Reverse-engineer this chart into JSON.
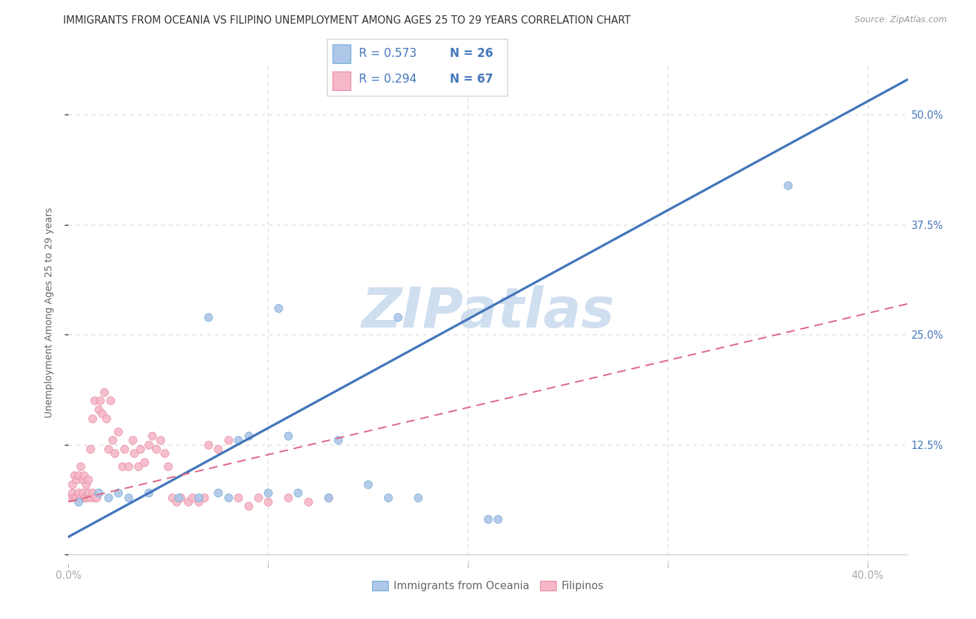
{
  "title": "IMMIGRANTS FROM OCEANIA VS FILIPINO UNEMPLOYMENT AMONG AGES 25 TO 29 YEARS CORRELATION CHART",
  "source": "Source: ZipAtlas.com",
  "ylabel": "Unemployment Among Ages 25 to 29 years",
  "xlim": [
    0.0,
    0.42
  ],
  "ylim": [
    -0.01,
    0.56
  ],
  "xticks": [
    0.0,
    0.1,
    0.2,
    0.3,
    0.4
  ],
  "xtick_labels": [
    "0.0%",
    "",
    "",
    "",
    "40.0%"
  ],
  "yticks": [
    0.0,
    0.125,
    0.25,
    0.375,
    0.5
  ],
  "ytick_labels": [
    "",
    "12.5%",
    "25.0%",
    "37.5%",
    "50.0%"
  ],
  "blue_color": "#aec6e8",
  "blue_edge_color": "#6aaad4",
  "blue_line_color": "#4477bb",
  "pink_color": "#f5b8c8",
  "pink_edge_color": "#e888a0",
  "pink_line_color": "#dd6688",
  "legend_R1": "R = 0.573",
  "legend_N1": "N = 26",
  "legend_R2": "R = 0.294",
  "legend_N2": "N = 67",
  "legend_text_color": "#4477bb",
  "watermark": "ZIPatlas",
  "watermark_color": "#d0dff0",
  "blue_scatter_x": [
    0.005,
    0.015,
    0.02,
    0.025,
    0.03,
    0.04,
    0.055,
    0.065,
    0.07,
    0.075,
    0.08,
    0.085,
    0.09,
    0.1,
    0.105,
    0.11,
    0.115,
    0.13,
    0.135,
    0.15,
    0.16,
    0.165,
    0.175,
    0.21,
    0.215,
    0.36
  ],
  "blue_scatter_y": [
    0.06,
    0.07,
    0.065,
    0.07,
    0.065,
    0.07,
    0.065,
    0.065,
    0.27,
    0.07,
    0.065,
    0.13,
    0.135,
    0.07,
    0.28,
    0.135,
    0.07,
    0.065,
    0.13,
    0.08,
    0.065,
    0.27,
    0.065,
    0.04,
    0.04,
    0.42
  ],
  "pink_scatter_x": [
    0.001,
    0.002,
    0.002,
    0.003,
    0.003,
    0.004,
    0.004,
    0.005,
    0.005,
    0.006,
    0.006,
    0.007,
    0.007,
    0.008,
    0.008,
    0.009,
    0.009,
    0.01,
    0.01,
    0.011,
    0.011,
    0.012,
    0.012,
    0.013,
    0.013,
    0.014,
    0.015,
    0.016,
    0.017,
    0.018,
    0.019,
    0.02,
    0.021,
    0.022,
    0.023,
    0.025,
    0.027,
    0.028,
    0.03,
    0.032,
    0.033,
    0.035,
    0.036,
    0.038,
    0.04,
    0.042,
    0.044,
    0.046,
    0.048,
    0.05,
    0.052,
    0.054,
    0.056,
    0.06,
    0.062,
    0.065,
    0.068,
    0.07,
    0.075,
    0.08,
    0.085,
    0.09,
    0.095,
    0.1,
    0.11,
    0.12,
    0.13
  ],
  "pink_scatter_y": [
    0.065,
    0.07,
    0.08,
    0.065,
    0.09,
    0.065,
    0.085,
    0.07,
    0.09,
    0.065,
    0.1,
    0.07,
    0.085,
    0.065,
    0.09,
    0.065,
    0.08,
    0.07,
    0.085,
    0.065,
    0.12,
    0.07,
    0.155,
    0.065,
    0.175,
    0.065,
    0.165,
    0.175,
    0.16,
    0.185,
    0.155,
    0.12,
    0.175,
    0.13,
    0.115,
    0.14,
    0.1,
    0.12,
    0.1,
    0.13,
    0.115,
    0.1,
    0.12,
    0.105,
    0.125,
    0.135,
    0.12,
    0.13,
    0.115,
    0.1,
    0.065,
    0.06,
    0.065,
    0.06,
    0.065,
    0.06,
    0.065,
    0.125,
    0.12,
    0.13,
    0.065,
    0.055,
    0.065,
    0.06,
    0.065,
    0.06,
    0.065
  ],
  "blue_trend_x": [
    0.0,
    0.42
  ],
  "blue_trend_y": [
    0.02,
    0.54
  ],
  "pink_trend_x": [
    0.0,
    0.42
  ],
  "pink_trend_y": [
    0.06,
    0.285
  ],
  "grid_color": "#d8d8d8",
  "title_color": "#333333",
  "axis_label_color": "#666666",
  "tick_label_color": "#4477bb",
  "marker_size": 70,
  "title_fontsize": 10.5,
  "source_fontsize": 9,
  "axis_fontsize": 10,
  "tick_fontsize": 10.5,
  "legend_fontsize": 12
}
